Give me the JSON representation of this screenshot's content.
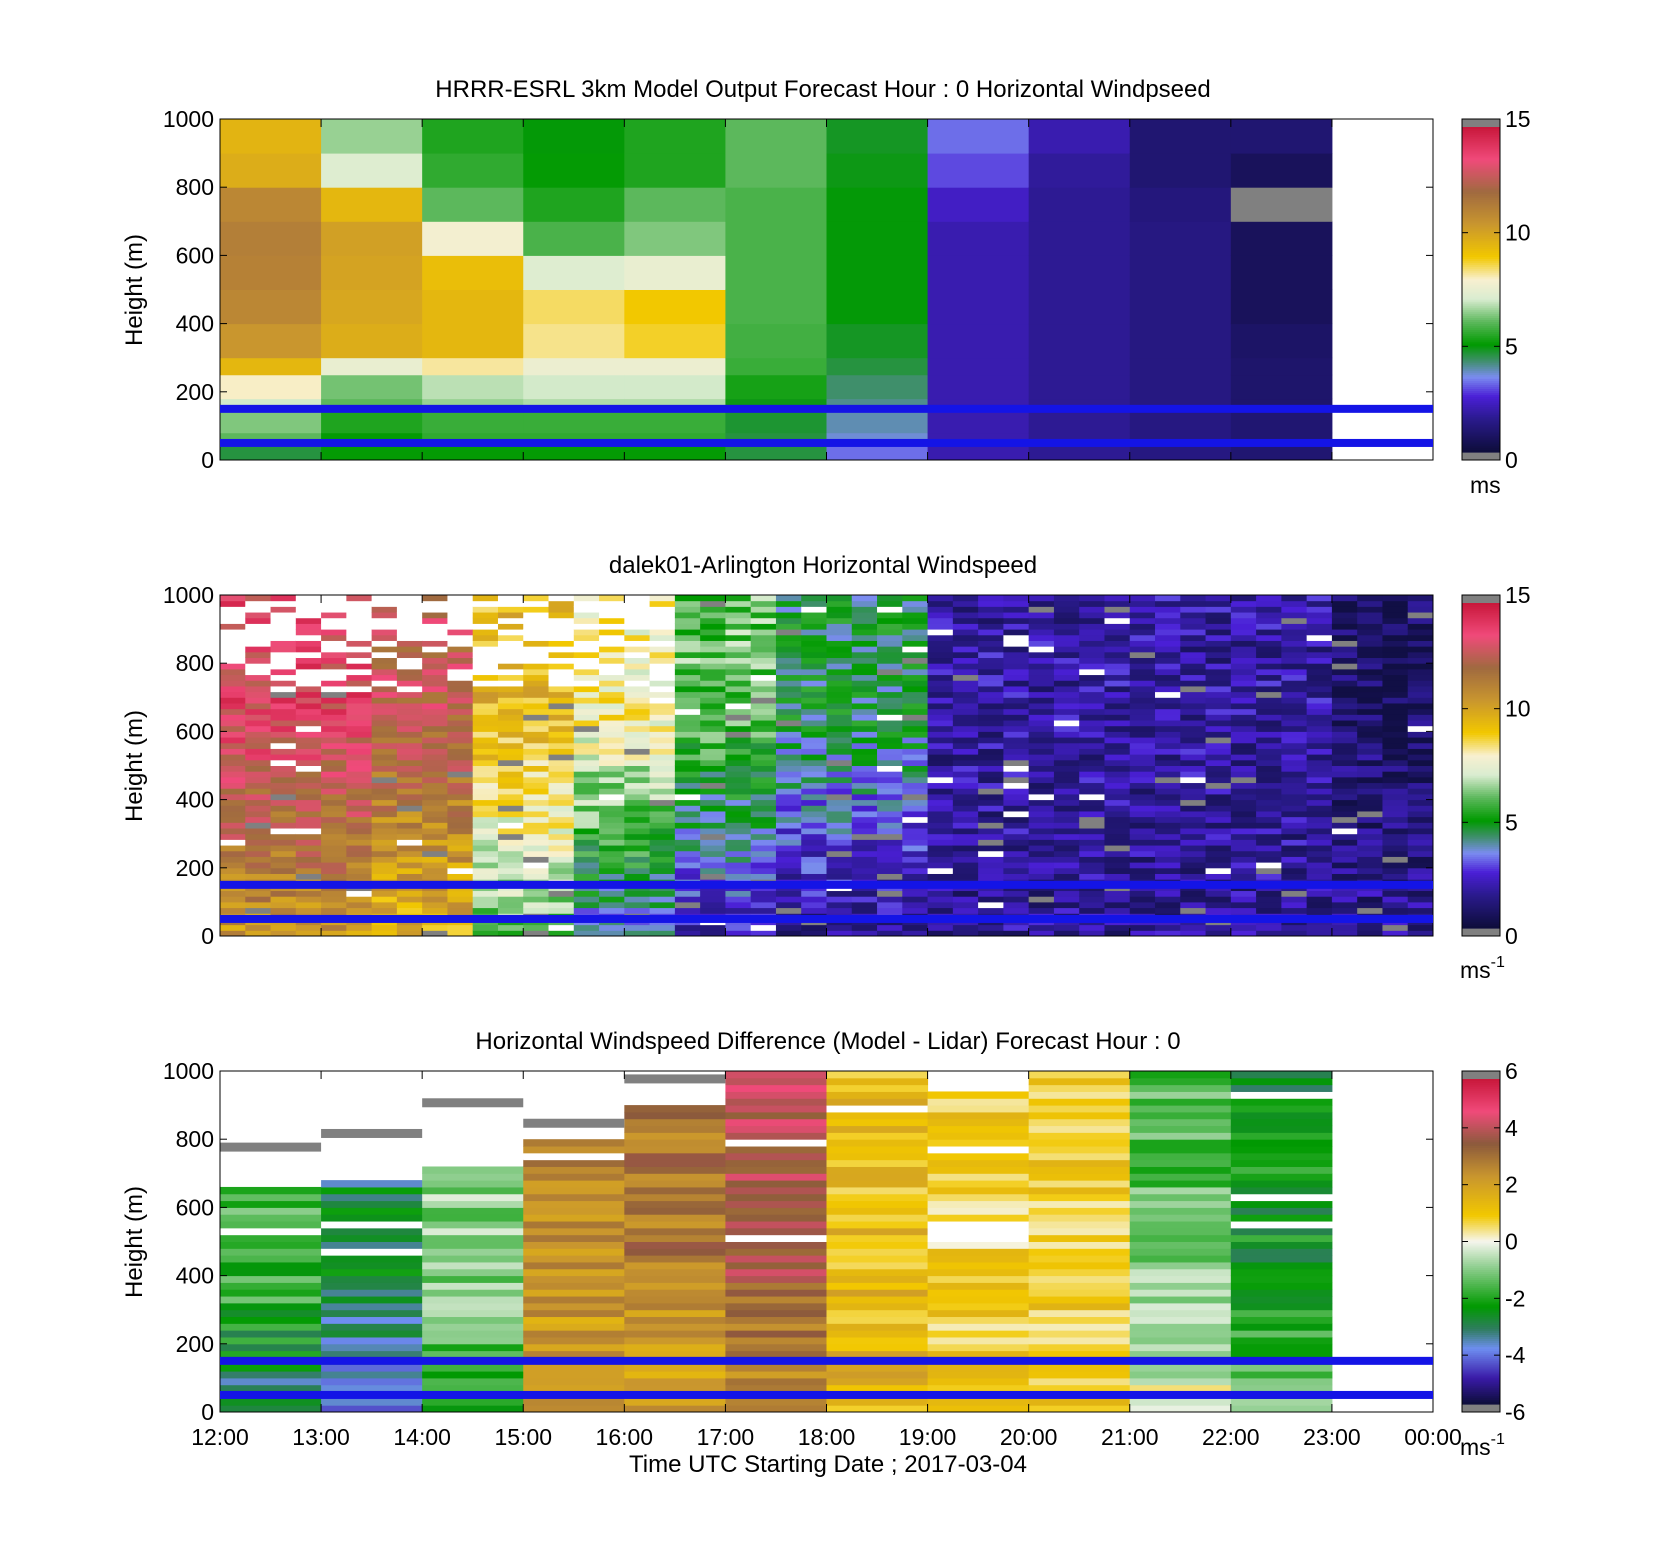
{
  "chart_data": [
    {
      "type": "heatmap",
      "title": "HRRR-ESRL 3km Model Output   Forecast Hour : 0 Horizontal Windpseed",
      "ylabel": "Height (m)",
      "ylim": [
        0,
        1000
      ],
      "yticks": [
        0,
        200,
        400,
        600,
        800,
        1000
      ],
      "xlim": [
        12,
        24
      ],
      "xticks": [
        12,
        13,
        14,
        15,
        16,
        17,
        18,
        19,
        20,
        21,
        22,
        23,
        24
      ],
      "colorbar": {
        "label": "ms",
        "superscript": "",
        "range": [
          0,
          15
        ],
        "ticks": [
          0,
          5,
          10,
          15
        ]
      },
      "reference_lines_m": [
        50,
        150
      ],
      "column_hours": [
        12,
        13,
        14,
        15,
        16,
        17,
        18,
        19,
        20,
        21,
        22
      ],
      "bands_m": [
        [
          0,
          40
        ],
        [
          40,
          80
        ],
        [
          80,
          150
        ],
        [
          150,
          180
        ],
        [
          180,
          250
        ],
        [
          250,
          300
        ],
        [
          300,
          400
        ],
        [
          400,
          500
        ],
        [
          500,
          600
        ],
        [
          600,
          700
        ],
        [
          700,
          800
        ],
        [
          800,
          900
        ],
        [
          900,
          1000
        ]
      ],
      "values_ms": [
        [
          4.5,
          5.0,
          5.0,
          5.0,
          5.0,
          4.5,
          3.2,
          2.0,
          1.6,
          1.3,
          1.0
        ],
        [
          6.0,
          5.0,
          5.5,
          5.5,
          5.5,
          4.5,
          3.6,
          2.0,
          1.6,
          1.3,
          1.0
        ],
        [
          6.3,
          5.3,
          5.6,
          5.6,
          5.6,
          4.6,
          3.8,
          2.0,
          1.6,
          1.3,
          1.0
        ],
        [
          7.0,
          6.0,
          6.5,
          6.7,
          6.7,
          4.8,
          4.0,
          2.0,
          1.6,
          1.3,
          0.9
        ],
        [
          8.0,
          6.2,
          6.8,
          7.0,
          7.0,
          5.2,
          4.2,
          2.0,
          1.6,
          1.3,
          0.9
        ],
        [
          9.5,
          7.5,
          8.2,
          7.6,
          7.6,
          5.6,
          4.5,
          2.0,
          1.6,
          1.3,
          0.9
        ],
        [
          10.5,
          9.8,
          9.5,
          8.3,
          8.8,
          5.7,
          4.7,
          2.0,
          1.6,
          1.3,
          0.8
        ],
        [
          11.0,
          10.0,
          9.5,
          8.5,
          9.0,
          5.8,
          4.9,
          2.0,
          1.6,
          1.3,
          0.6
        ],
        [
          11.2,
          10.1,
          9.3,
          7.2,
          7.5,
          5.8,
          4.9,
          2.0,
          1.6,
          1.3,
          0.6
        ],
        [
          11.3,
          10.2,
          7.8,
          5.8,
          6.3,
          5.8,
          4.9,
          2.0,
          1.6,
          1.3,
          0.6
        ],
        [
          11.0,
          9.5,
          6.0,
          5.3,
          6.0,
          5.8,
          4.9,
          2.3,
          1.6,
          1.2,
          -1
        ],
        [
          9.8,
          7.2,
          5.5,
          5.0,
          5.3,
          6.0,
          4.8,
          2.9,
          1.7,
          1.0,
          0.6
        ],
        [
          9.6,
          6.5,
          5.3,
          4.9,
          5.3,
          6.0,
          4.7,
          3.2,
          2.0,
          1.0,
          1.0
        ]
      ]
    },
    {
      "type": "heatmap",
      "title": "dalek01-Arlington  Horizontal Windspeed",
      "ylabel": "Height (m)",
      "ylim": [
        0,
        1000
      ],
      "yticks": [
        0,
        200,
        400,
        600,
        800,
        1000
      ],
      "xlim": [
        12,
        24
      ],
      "colorbar": {
        "label": "ms",
        "superscript": "-1",
        "range": [
          0,
          15
        ],
        "ticks": [
          0,
          5,
          10,
          15
        ]
      },
      "reference_lines_m": [
        50,
        150
      ],
      "profile_interval_hours": 0.25,
      "profile_count": 48,
      "regime_by_hour": [
        {
          "from": 12.0,
          "to": 13.5,
          "upper_ms": 13.5,
          "lower_ms": 10.5
        },
        {
          "from": 13.5,
          "to": 14.5,
          "upper_ms": 12.5,
          "lower_ms": 9.5
        },
        {
          "from": 14.5,
          "to": 15.5,
          "upper_ms": 9.5,
          "lower_ms": 6.0
        },
        {
          "from": 15.5,
          "to": 16.5,
          "upper_ms": 8.0,
          "lower_ms": 3.5
        },
        {
          "from": 16.5,
          "to": 17.5,
          "upper_ms": 6.0,
          "lower_ms": 2.0
        },
        {
          "from": 17.5,
          "to": 19.0,
          "upper_ms": 4.5,
          "lower_ms": 1.5
        },
        {
          "from": 19.0,
          "to": 23.0,
          "upper_ms": 1.8,
          "lower_ms": 1.6
        },
        {
          "from": 23.0,
          "to": 24.0,
          "upper_ms": 0.8,
          "lower_ms": 1.6
        }
      ]
    },
    {
      "type": "heatmap",
      "title": "Horizontal Windspeed Difference (Model - Lidar) Forecast Hour : 0",
      "ylabel": "Height (m)",
      "xlabel": "Time UTC  Starting Date ; 2017-03-04",
      "ylim": [
        0,
        1000
      ],
      "yticks": [
        0,
        200,
        400,
        600,
        800,
        1000
      ],
      "xlim": [
        12,
        24
      ],
      "xtick_labels": [
        "12:00",
        "13:00",
        "14:00",
        "15:00",
        "16:00",
        "17:00",
        "18:00",
        "19:00",
        "20:00",
        "21:00",
        "22:00",
        "23:00",
        "00:00"
      ],
      "colorbar": {
        "label": "ms",
        "superscript": "-1",
        "range": [
          -6,
          6
        ],
        "ticks": [
          -6,
          -4,
          -2,
          0,
          2,
          4,
          6
        ]
      },
      "reference_lines_m": [
        50,
        150
      ],
      "column_hours": [
        12,
        13,
        14,
        15,
        16,
        17,
        18,
        19,
        20,
        21,
        22
      ],
      "column_top_m": [
        660,
        690,
        720,
        800,
        900,
        1000,
        1000,
        940,
        1000,
        1000,
        1000
      ],
      "column_mid_ms": [
        -1.8,
        -3.0,
        -1.0,
        2.5,
        3.0,
        4.0,
        1.3,
        0.8,
        0.8,
        -1.5,
        -2.5
      ],
      "column_low_ms": [
        -3.5,
        -4.5,
        -2.5,
        2.0,
        2.0,
        2.5,
        1.5,
        1.0,
        1.0,
        0.0,
        -1.5
      ],
      "gray_bar_tops_m": [
        790,
        830,
        920,
        860,
        990
      ]
    }
  ]
}
